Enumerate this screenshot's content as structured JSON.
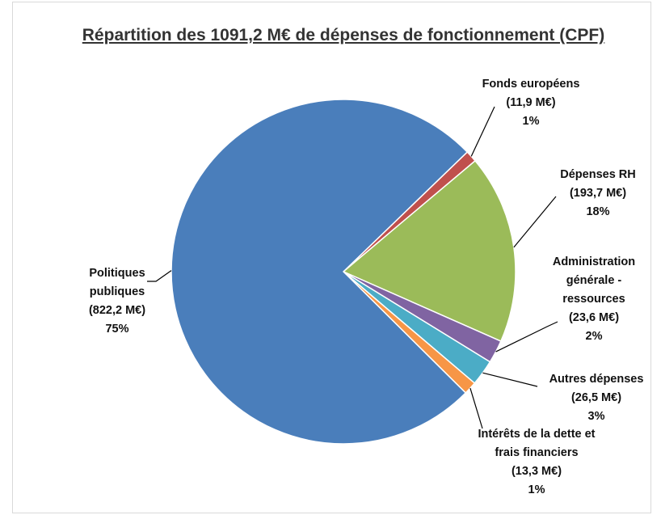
{
  "chart_data": {
    "type": "pie",
    "title": "Répartition des 1091,2 M€ de dépenses de fonctionnement (CPF)",
    "categories": [
      "Fonds européens",
      "Dépenses RH",
      "Administration générale - ressources",
      "Autres dépenses",
      "Intérêts de la dette et frais financiers",
      "Politiques publiques"
    ],
    "values": [
      11.9,
      193.7,
      23.6,
      26.5,
      13.3,
      822.2
    ],
    "value_labels": [
      "(11,9 M€)",
      "(193,7 M€)",
      "(23,6 M€)",
      "(26,5 M€)",
      "(13,3 M€)",
      "(822,2 M€)"
    ],
    "percent_labels": [
      "1%",
      "18%",
      "2%",
      "3%",
      "1%",
      "75%"
    ],
    "colors": [
      "#c0504d",
      "#9bbb59",
      "#8064a2",
      "#4bacc6",
      "#f79646",
      "#4a7ebb"
    ]
  }
}
